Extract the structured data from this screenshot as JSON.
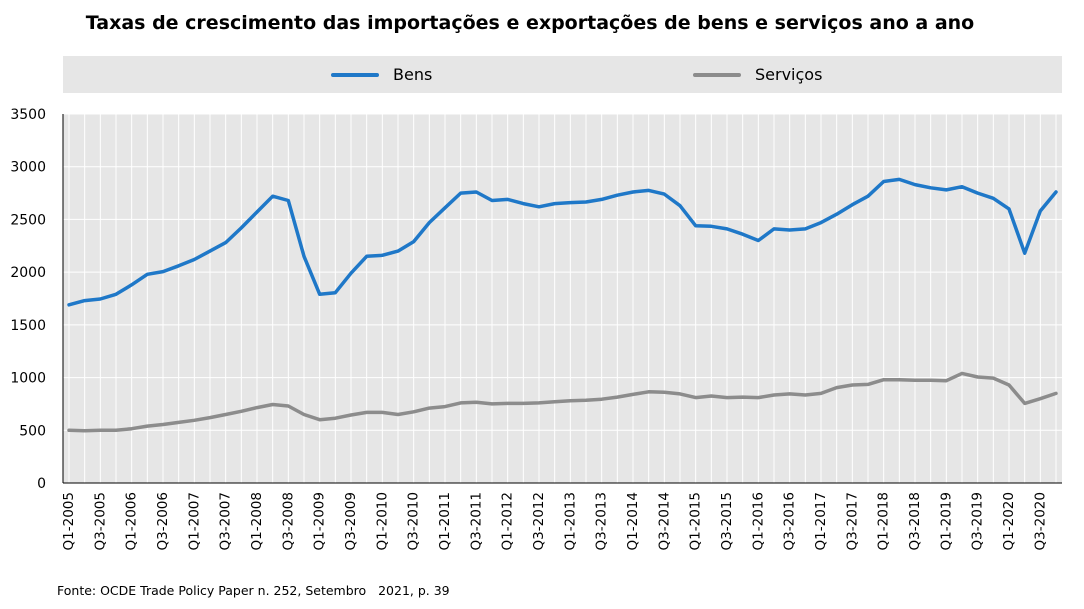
{
  "colors": {
    "bens": "#1f78c8",
    "servicos": "#8c8c8c",
    "plot_bg": "#e6e6e6",
    "grid": "#ffffff"
  },
  "source_note": "Fonte: OCDE Trade Policy Paper n. 252, Setembro   2021, p. 39",
  "chart_data": {
    "type": "line",
    "title": "Taxas de crescimento das importações e exportações de bens e serviços ano a ano",
    "xlabel": "",
    "ylabel": "",
    "ylim": [
      0,
      3500
    ],
    "yticks": [
      0,
      500,
      1000,
      1500,
      2000,
      2500,
      3000,
      3500
    ],
    "grid": true,
    "legend_position": "top",
    "x": [
      "Q1-2005",
      "Q2-2005",
      "Q3-2005",
      "Q4-2005",
      "Q1-2006",
      "Q2-2006",
      "Q3-2006",
      "Q4-2006",
      "Q1-2007",
      "Q2-2007",
      "Q3-2007",
      "Q4-2007",
      "Q1-2008",
      "Q2-2008",
      "Q3-2008",
      "Q4-2008",
      "Q1-2009",
      "Q2-2009",
      "Q3-2009",
      "Q4-2009",
      "Q1-2010",
      "Q2-2010",
      "Q3-2010",
      "Q4-2010",
      "Q1-2011",
      "Q2-2011",
      "Q3-2011",
      "Q4-2011",
      "Q1-2012",
      "Q2-2012",
      "Q3-2012",
      "Q4-2012",
      "Q1-2013",
      "Q2-2013",
      "Q3-2013",
      "Q4-2013",
      "Q1-2014",
      "Q2-2014",
      "Q3-2014",
      "Q4-2014",
      "Q1-2015",
      "Q2-2015",
      "Q3-2015",
      "Q4-2015",
      "Q1-2016",
      "Q2-2016",
      "Q3-2016",
      "Q4-2016",
      "Q1-2017",
      "Q2-2017",
      "Q3-2017",
      "Q4-2017",
      "Q1-2018",
      "Q2-2018",
      "Q3-2018",
      "Q4-2018",
      "Q1-2019",
      "Q2-2019",
      "Q3-2019",
      "Q4-2019",
      "Q1-2020",
      "Q2-2020",
      "Q3-2020",
      "Q4-2020"
    ],
    "tick_labels": [
      "Q1-2005",
      "Q3-2005",
      "Q1-2006",
      "Q3-2006",
      "Q1-2007",
      "Q3-2007",
      "Q1-2008",
      "Q3-2008",
      "Q1-2009",
      "Q3-2009",
      "Q1-2010",
      "Q3-2010",
      "Q1-2011",
      "Q3-2011",
      "Q1-2012",
      "Q3-2012",
      "Q1-2013",
      "Q3-2013",
      "Q1-2014",
      "Q3-2014",
      "Q1-2015",
      "Q3-2015",
      "Q1-2016",
      "Q3-2016",
      "Q1-2017",
      "Q3-2017",
      "Q1-2018",
      "Q3-2018",
      "Q1-2019",
      "Q3-2019",
      "Q1-2020",
      "Q3-2020"
    ],
    "series": [
      {
        "name": "Bens",
        "color_key": "bens",
        "values": [
          1690,
          1730,
          1745,
          1790,
          1880,
          1980,
          2005,
          2060,
          2120,
          2200,
          2280,
          2420,
          2570,
          2720,
          2680,
          2150,
          1790,
          1805,
          1990,
          2150,
          2160,
          2200,
          2290,
          2470,
          2610,
          2750,
          2760,
          2680,
          2690,
          2650,
          2620,
          2650,
          2660,
          2665,
          2690,
          2730,
          2760,
          2775,
          2740,
          2630,
          2440,
          2435,
          2410,
          2360,
          2300,
          2410,
          2400,
          2410,
          2470,
          2550,
          2640,
          2720,
          2860,
          2880,
          2830,
          2800,
          2780,
          2810,
          2750,
          2700,
          2600,
          2180,
          2580,
          2760
        ]
      },
      {
        "name": "Serviços",
        "color_key": "servicos",
        "values": [
          500,
          495,
          500,
          500,
          515,
          540,
          555,
          575,
          595,
          620,
          650,
          680,
          715,
          745,
          730,
          650,
          600,
          615,
          645,
          670,
          670,
          650,
          675,
          710,
          725,
          760,
          765,
          750,
          755,
          755,
          760,
          770,
          780,
          785,
          795,
          815,
          840,
          865,
          860,
          845,
          810,
          825,
          810,
          815,
          810,
          835,
          845,
          835,
          850,
          905,
          930,
          935,
          980,
          980,
          975,
          975,
          970,
          1040,
          1005,
          995,
          930,
          755,
          800,
          850
        ]
      }
    ]
  }
}
